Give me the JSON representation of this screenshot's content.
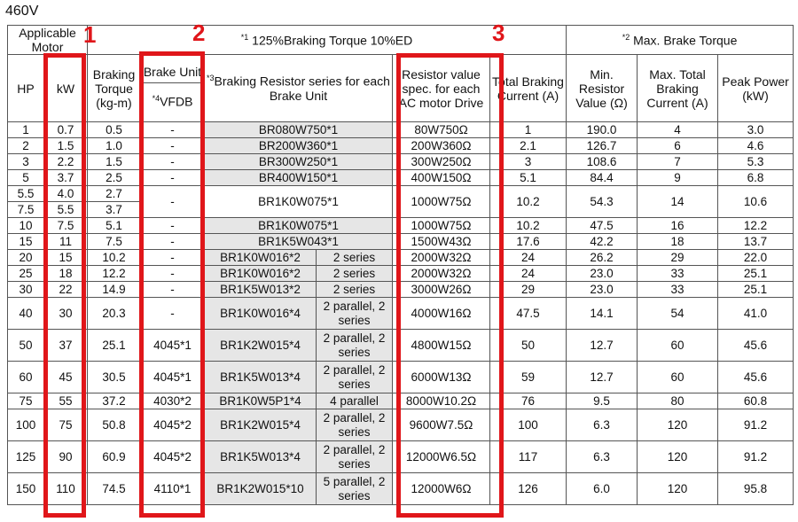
{
  "page_title": "460V",
  "markers": [
    "1",
    "2",
    "3"
  ],
  "header": {
    "applicable_motor": "Applicable Motor",
    "hp": "HP",
    "kw": "kW",
    "braking_torque": "Braking Torque (kg-m)",
    "brake_unit": "Brake Unit",
    "vfdb_sup": "*4",
    "vfdb": "VFDB",
    "group1_sup": "*1",
    "group1": " 125%Braking Torque    10%ED",
    "series_sup": "*3",
    "series": "Braking Resistor series for each Brake Unit",
    "resistor_spec": "Resistor value spec. for each AC motor Drive",
    "total_current": "Total Braking Current (A)",
    "group2_sup": "*2",
    "group2": " Max. Brake Torque",
    "min_resistor": "Min. Resistor Value (Ω)",
    "max_current": "Max. Total Braking Current (A)",
    "peak_power": "Peak Power (kW)"
  },
  "rows": [
    {
      "hp": "1",
      "kw": "0.7",
      "bt": "0.5",
      "bu": "-",
      "ser": "BR080W750*1",
      "cfg": "",
      "spec": "80W750Ω",
      "tbc": "1",
      "minr": "190.0",
      "mtc": "4",
      "pp": "3.0"
    },
    {
      "hp": "2",
      "kw": "1.5",
      "bt": "1.0",
      "bu": "-",
      "ser": "BR200W360*1",
      "cfg": "",
      "spec": "200W360Ω",
      "tbc": "2.1",
      "minr": "126.7",
      "mtc": "6",
      "pp": "4.6"
    },
    {
      "hp": "3",
      "kw": "2.2",
      "bt": "1.5",
      "bu": "-",
      "ser": "BR300W250*1",
      "cfg": "",
      "spec": "300W250Ω",
      "tbc": "3",
      "minr": "108.6",
      "mtc": "7",
      "pp": "5.3"
    },
    {
      "hp": "5",
      "kw": "3.7",
      "bt": "2.5",
      "bu": "-",
      "ser": "BR400W150*1",
      "cfg": "",
      "spec": "400W150Ω",
      "tbc": "5.1",
      "minr": "84.4",
      "mtc": "9",
      "pp": "6.8"
    },
    {
      "hp": "5.5",
      "kw": "4.0",
      "bt": "2.7",
      "hp2": "7.5",
      "kw2": "5.5",
      "bt2": "3.7",
      "bu": "-",
      "ser": "BR1K0W075*1",
      "cfg": "",
      "spec": "1000W75Ω",
      "tbc": "10.2",
      "minr": "54.3",
      "mtc": "14",
      "pp": "10.6"
    },
    {
      "hp": "10",
      "kw": "7.5",
      "bt": "5.1",
      "bu": "-",
      "ser": "BR1K0W075*1",
      "cfg": "",
      "spec": "1000W75Ω",
      "tbc": "10.2",
      "minr": "47.5",
      "mtc": "16",
      "pp": "12.2"
    },
    {
      "hp": "15",
      "kw": "11",
      "bt": "7.5",
      "bu": "-",
      "ser": "BR1K5W043*1",
      "cfg": "",
      "spec": "1500W43Ω",
      "tbc": "17.6",
      "minr": "42.2",
      "mtc": "18",
      "pp": "13.7"
    },
    {
      "hp": "20",
      "kw": "15",
      "bt": "10.2",
      "bu": "-",
      "ser": "BR1K0W016*2",
      "cfg": "2 series",
      "spec": "2000W32Ω",
      "tbc": "24",
      "minr": "26.2",
      "mtc": "29",
      "pp": "22.0"
    },
    {
      "hp": "25",
      "kw": "18",
      "bt": "12.2",
      "bu": "-",
      "ser": "BR1K0W016*2",
      "cfg": "2 series",
      "spec": "2000W32Ω",
      "tbc": "24",
      "minr": "23.0",
      "mtc": "33",
      "pp": "25.1"
    },
    {
      "hp": "30",
      "kw": "22",
      "bt": "14.9",
      "bu": "-",
      "ser": "BR1K5W013*2",
      "cfg": "2 series",
      "spec": "3000W26Ω",
      "tbc": "29",
      "minr": "23.0",
      "mtc": "33",
      "pp": "25.1"
    },
    {
      "hp": "40",
      "kw": "30",
      "bt": "20.3",
      "bu": "-",
      "ser": "BR1K0W016*4",
      "cfg": "2 parallel, 2 series",
      "spec": "4000W16Ω",
      "tbc": "47.5",
      "minr": "14.1",
      "mtc": "54",
      "pp": "41.0"
    },
    {
      "hp": "50",
      "kw": "37",
      "bt": "25.1",
      "bu": "4045*1",
      "ser": "BR1K2W015*4",
      "cfg": "2 parallel, 2 series",
      "spec": "4800W15Ω",
      "tbc": "50",
      "minr": "12.7",
      "mtc": "60",
      "pp": "45.6"
    },
    {
      "hp": "60",
      "kw": "45",
      "bt": "30.5",
      "bu": "4045*1",
      "ser": "BR1K5W013*4",
      "cfg": "2 parallel, 2 series",
      "spec": "6000W13Ω",
      "tbc": "59",
      "minr": "12.7",
      "mtc": "60",
      "pp": "45.6"
    },
    {
      "hp": "75",
      "kw": "55",
      "bt": "37.2",
      "bu": "4030*2",
      "ser": "BR1K0W5P1*4",
      "cfg": "4 parallel",
      "spec": "8000W10.2Ω",
      "tbc": "76",
      "minr": "9.5",
      "mtc": "80",
      "pp": "60.8"
    },
    {
      "hp": "100",
      "kw": "75",
      "bt": "50.8",
      "bu": "4045*2",
      "ser": "BR1K2W015*4",
      "cfg": "2 parallel, 2 series",
      "spec": "9600W7.5Ω",
      "tbc": "100",
      "minr": "6.3",
      "mtc": "120",
      "pp": "91.2"
    },
    {
      "hp": "125",
      "kw": "90",
      "bt": "60.9",
      "bu": "4045*2",
      "ser": "BR1K5W013*4",
      "cfg": "2 parallel, 2 series",
      "spec": "12000W6.5Ω",
      "tbc": "117",
      "minr": "6.3",
      "mtc": "120",
      "pp": "91.2"
    },
    {
      "hp": "150",
      "kw": "110",
      "bt": "74.5",
      "bu": "4110*1",
      "ser": "BR1K2W015*10",
      "cfg": "5 parallel, 2 series",
      "spec": "12000W6Ω",
      "tbc": "126",
      "minr": "6.0",
      "mtc": "120",
      "pp": "95.8"
    }
  ],
  "colors": {
    "highlight": "#e0161a",
    "shade": "#e6e6e6"
  }
}
